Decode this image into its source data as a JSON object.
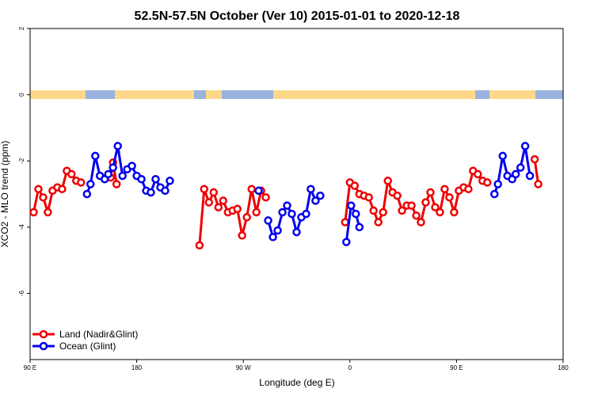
{
  "chart_data": {
    "type": "line",
    "title": "52.5N-57.5N October (Ver 10)   2015-01-01 to 2020-12-18",
    "xlabel": "Longitude (deg E)",
    "ylabel": "XCO2 - MLO trend (ppm)",
    "xlim": [
      90,
      540
    ],
    "ylim": [
      -8,
      2
    ],
    "xticks": [
      {
        "value": 90,
        "label": "90 E"
      },
      {
        "value": 180,
        "label": "180"
      },
      {
        "value": 270,
        "label": "90 W"
      },
      {
        "value": 360,
        "label": "0"
      },
      {
        "value": 450,
        "label": "90 E"
      },
      {
        "value": 540,
        "label": "180"
      }
    ],
    "yticks": [
      {
        "value": 2,
        "label": "2"
      },
      {
        "value": 0,
        "label": "0"
      },
      {
        "value": -2,
        "label": "-2"
      },
      {
        "value": -4,
        "label": "-4"
      },
      {
        "value": -6,
        "label": "-6"
      }
    ],
    "legend_position": "bottom-left",
    "series": [
      {
        "name": "Land (Nadir&Glint)",
        "color": "#ee0000",
        "segments": [
          [
            [
              93,
              -3.55
            ],
            [
              97,
              -2.85
            ],
            [
              101,
              -3.1
            ],
            [
              105,
              -3.55
            ],
            [
              109,
              -2.9
            ],
            [
              113,
              -2.8
            ],
            [
              117,
              -2.85
            ],
            [
              121,
              -2.3
            ],
            [
              125,
              -2.4
            ],
            [
              129,
              -2.6
            ],
            [
              133,
              -2.65
            ]
          ],
          [
            [
              158,
              -2.5
            ],
            [
              160,
              -2.05
            ],
            [
              163,
              -2.7
            ]
          ],
          [
            [
              233,
              -4.55
            ],
            [
              237,
              -2.85
            ],
            [
              241,
              -3.25
            ],
            [
              245,
              -2.95
            ],
            [
              249,
              -3.4
            ],
            [
              253,
              -3.2
            ],
            [
              257,
              -3.55
            ],
            [
              261,
              -3.5
            ],
            [
              265,
              -3.45
            ],
            [
              269,
              -4.25
            ],
            [
              273,
              -3.7
            ],
            [
              277,
              -2.85
            ],
            [
              281,
              -3.55
            ],
            [
              285,
              -2.9
            ],
            [
              289,
              -3.1
            ]
          ],
          [
            [
              356,
              -3.85
            ],
            [
              360,
              -2.65
            ],
            [
              364,
              -2.75
            ],
            [
              368,
              -3.0
            ],
            [
              372,
              -3.05
            ],
            [
              376,
              -3.1
            ],
            [
              380,
              -3.5
            ],
            [
              384,
              -3.85
            ],
            [
              388,
              -3.55
            ],
            [
              392,
              -2.6
            ],
            [
              396,
              -2.95
            ],
            [
              400,
              -3.05
            ],
            [
              404,
              -3.5
            ],
            [
              408,
              -3.35
            ],
            [
              412,
              -3.35
            ],
            [
              416,
              -3.65
            ],
            [
              420,
              -3.85
            ],
            [
              424,
              -3.25
            ],
            [
              428,
              -2.95
            ],
            [
              432,
              -3.4
            ],
            [
              436,
              -3.55
            ],
            [
              440,
              -2.85
            ],
            [
              444,
              -3.1
            ],
            [
              448,
              -3.55
            ],
            [
              452,
              -2.9
            ],
            [
              456,
              -2.8
            ],
            [
              460,
              -2.85
            ],
            [
              464,
              -2.3
            ],
            [
              468,
              -2.4
            ],
            [
              472,
              -2.6
            ],
            [
              476,
              -2.65
            ]
          ],
          [
            [
              516,
              -1.95
            ],
            [
              519,
              -2.7
            ]
          ]
        ]
      },
      {
        "name": "Ocean (Glint)",
        "color": "#0000ee",
        "segments": [
          [
            [
              138,
              -3.0
            ],
            [
              141,
              -2.7
            ],
            [
              145,
              -1.85
            ],
            [
              149,
              -2.45
            ],
            [
              153,
              -2.55
            ],
            [
              156,
              -2.4
            ],
            [
              160,
              -2.2
            ],
            [
              164,
              -1.55
            ],
            [
              168,
              -2.45
            ],
            [
              172,
              -2.25
            ],
            [
              176,
              -2.15
            ],
            [
              180,
              -2.45
            ],
            [
              184,
              -2.55
            ],
            [
              188,
              -2.9
            ],
            [
              192,
              -2.95
            ],
            [
              196,
              -2.55
            ],
            [
              200,
              -2.8
            ],
            [
              204,
              -2.9
            ],
            [
              208,
              -2.6
            ]
          ],
          [
            [
              283,
              -2.9
            ]
          ],
          [
            [
              291,
              -3.8
            ],
            [
              295,
              -4.3
            ],
            [
              299,
              -4.1
            ],
            [
              303,
              -3.55
            ],
            [
              307,
              -3.35
            ],
            [
              311,
              -3.6
            ],
            [
              315,
              -4.15
            ],
            [
              319,
              -3.7
            ],
            [
              323,
              -3.6
            ],
            [
              327,
              -2.85
            ],
            [
              331,
              -3.2
            ],
            [
              335,
              -3.05
            ]
          ],
          [
            [
              357,
              -4.45
            ],
            [
              361,
              -3.35
            ],
            [
              365,
              -3.6
            ],
            [
              368,
              -4.0
            ]
          ],
          [
            [
              482,
              -3.0
            ],
            [
              485,
              -2.7
            ],
            [
              489,
              -1.85
            ],
            [
              493,
              -2.45
            ],
            [
              497,
              -2.55
            ],
            [
              500,
              -2.4
            ],
            [
              504,
              -2.2
            ],
            [
              508,
              -1.55
            ],
            [
              512,
              -2.45
            ]
          ]
        ]
      }
    ]
  }
}
